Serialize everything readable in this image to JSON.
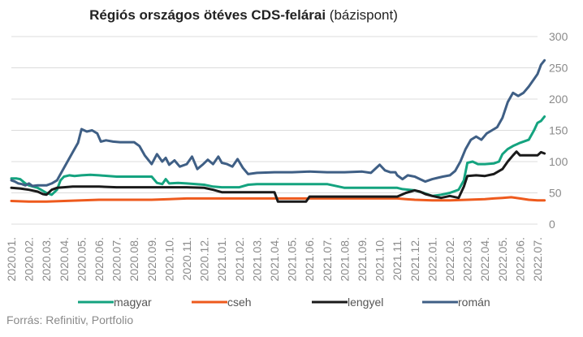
{
  "chart_data": {
    "type": "line",
    "title_bold": "Régiós országos ötéves CDS-felárai",
    "title_rest": " (bázispont)",
    "source": "Forrás: Refinitiv, Portfolio",
    "ylim": [
      0,
      300
    ],
    "yticks": [
      "0",
      "50",
      "100",
      "150",
      "200",
      "250",
      "300"
    ],
    "grid": true,
    "legend_position": "bottom",
    "categories": [
      "2020.01.",
      "2020.02.",
      "2020.03.",
      "2020.04.",
      "2020.05.",
      "2020.06.",
      "2020.07.",
      "2020.08.",
      "2020.09.",
      "2020.10.",
      "2020.11.",
      "2020.12.",
      "2021.01.",
      "2021.02.",
      "2021.03.",
      "2021.04.",
      "2021.05.",
      "2021.06.",
      "2021.07.",
      "2021.08.",
      "2021.09.",
      "2021.10.",
      "2021.11.",
      "2021.12.",
      "2022.01.",
      "2022.02.",
      "2022.03.",
      "2022.04.",
      "2022.05.",
      "2022.06.",
      "2022.07."
    ],
    "series": [
      {
        "name": "magyar",
        "color": "#14a37f",
        "points": [
          [
            0,
            73
          ],
          [
            0.3,
            73
          ],
          [
            0.5,
            72
          ],
          [
            0.8,
            65
          ],
          [
            1.0,
            62
          ],
          [
            1.5,
            58
          ],
          [
            2.0,
            50
          ],
          [
            2.3,
            47
          ],
          [
            2.6,
            55
          ],
          [
            2.8,
            70
          ],
          [
            3.0,
            76
          ],
          [
            3.3,
            78
          ],
          [
            3.6,
            77
          ],
          [
            4.0,
            78
          ],
          [
            4.5,
            79
          ],
          [
            5.0,
            78
          ],
          [
            6.0,
            76
          ],
          [
            7.0,
            76
          ],
          [
            8.0,
            76
          ],
          [
            8.3,
            66
          ],
          [
            8.6,
            64
          ],
          [
            8.8,
            72
          ],
          [
            9.0,
            65
          ],
          [
            9.5,
            66
          ],
          [
            10.0,
            65
          ],
          [
            11.0,
            63
          ],
          [
            11.5,
            60
          ],
          [
            12.0,
            59
          ],
          [
            13.0,
            59
          ],
          [
            13.5,
            63
          ],
          [
            14.0,
            64
          ],
          [
            15.0,
            64
          ],
          [
            16.0,
            64
          ],
          [
            17.0,
            64
          ],
          [
            18.0,
            64
          ],
          [
            19.0,
            58
          ],
          [
            20.0,
            58
          ],
          [
            21.0,
            58
          ],
          [
            22.0,
            58
          ],
          [
            22.3,
            56
          ],
          [
            22.7,
            55
          ],
          [
            23.0,
            54
          ],
          [
            23.5,
            50
          ],
          [
            24.0,
            45
          ],
          [
            24.5,
            47
          ],
          [
            25.0,
            50
          ],
          [
            25.5,
            55
          ],
          [
            25.8,
            70
          ],
          [
            26.0,
            98
          ],
          [
            26.3,
            100
          ],
          [
            26.6,
            96
          ],
          [
            27.0,
            96
          ],
          [
            27.5,
            97
          ],
          [
            27.8,
            100
          ],
          [
            28.0,
            112
          ],
          [
            28.3,
            120
          ],
          [
            28.6,
            125
          ],
          [
            29.0,
            130
          ],
          [
            29.5,
            135
          ],
          [
            29.8,
            150
          ],
          [
            30.0,
            162
          ],
          [
            30.2,
            165
          ],
          [
            30.4,
            172
          ]
        ]
      },
      {
        "name": "cseh",
        "color": "#ee5a1d",
        "points": [
          [
            0,
            37
          ],
          [
            1,
            36
          ],
          [
            2,
            36
          ],
          [
            3,
            37
          ],
          [
            4,
            38
          ],
          [
            5,
            39
          ],
          [
            6,
            39
          ],
          [
            7,
            39
          ],
          [
            8,
            39
          ],
          [
            9,
            40
          ],
          [
            10,
            41
          ],
          [
            11,
            41
          ],
          [
            12,
            41
          ],
          [
            13,
            41
          ],
          [
            14,
            41
          ],
          [
            15,
            41
          ],
          [
            16,
            41
          ],
          [
            17,
            41
          ],
          [
            18,
            41
          ],
          [
            19,
            41
          ],
          [
            20,
            41
          ],
          [
            21,
            41
          ],
          [
            22,
            41
          ],
          [
            22.5,
            40
          ],
          [
            23,
            39
          ],
          [
            24,
            38
          ],
          [
            25,
            38
          ],
          [
            26,
            39
          ],
          [
            27,
            40
          ],
          [
            27.5,
            41
          ],
          [
            28,
            42
          ],
          [
            28.5,
            43
          ],
          [
            29,
            41
          ],
          [
            29.5,
            39
          ],
          [
            30,
            38
          ],
          [
            30.4,
            38
          ]
        ]
      },
      {
        "name": "lengyel",
        "color": "#1a1a1a",
        "points": [
          [
            0,
            58
          ],
          [
            0.5,
            57
          ],
          [
            1.0,
            55
          ],
          [
            1.5,
            52
          ],
          [
            1.8,
            48
          ],
          [
            2.0,
            47
          ],
          [
            2.3,
            55
          ],
          [
            2.6,
            58
          ],
          [
            3.0,
            59
          ],
          [
            3.5,
            60
          ],
          [
            4.0,
            60
          ],
          [
            5.0,
            60
          ],
          [
            6.0,
            59
          ],
          [
            7.0,
            59
          ],
          [
            8.0,
            59
          ],
          [
            9.0,
            59
          ],
          [
            10.0,
            59
          ],
          [
            11.0,
            58
          ],
          [
            11.5,
            55
          ],
          [
            12.0,
            51
          ],
          [
            13.0,
            51
          ],
          [
            14.0,
            51
          ],
          [
            15.0,
            51
          ],
          [
            15.2,
            36
          ],
          [
            16.0,
            36
          ],
          [
            16.8,
            36
          ],
          [
            17.0,
            44
          ],
          [
            18.0,
            44
          ],
          [
            19.0,
            44
          ],
          [
            20.0,
            44
          ],
          [
            21.0,
            44
          ],
          [
            22.0,
            44
          ],
          [
            22.5,
            50
          ],
          [
            23.0,
            54
          ],
          [
            23.3,
            52
          ],
          [
            23.6,
            48
          ],
          [
            24.0,
            45
          ],
          [
            24.5,
            42
          ],
          [
            25.0,
            45
          ],
          [
            25.5,
            42
          ],
          [
            25.8,
            60
          ],
          [
            26.0,
            77
          ],
          [
            26.5,
            78
          ],
          [
            27.0,
            77
          ],
          [
            27.5,
            80
          ],
          [
            28.0,
            88
          ],
          [
            28.3,
            100
          ],
          [
            28.6,
            110
          ],
          [
            28.8,
            116
          ],
          [
            29.0,
            110
          ],
          [
            29.5,
            110
          ],
          [
            30.0,
            110
          ],
          [
            30.2,
            115
          ],
          [
            30.4,
            113
          ]
        ]
      },
      {
        "name": "román",
        "color": "#3f5f85",
        "points": [
          [
            0,
            70
          ],
          [
            0.2,
            68
          ],
          [
            0.4,
            65
          ],
          [
            0.6,
            64
          ],
          [
            0.8,
            62
          ],
          [
            1.0,
            65
          ],
          [
            1.2,
            61
          ],
          [
            1.5,
            62
          ],
          [
            2.0,
            62
          ],
          [
            2.3,
            65
          ],
          [
            2.6,
            70
          ],
          [
            2.9,
            85
          ],
          [
            3.2,
            100
          ],
          [
            3.5,
            115
          ],
          [
            3.8,
            130
          ],
          [
            4.0,
            152
          ],
          [
            4.3,
            148
          ],
          [
            4.6,
            150
          ],
          [
            4.9,
            145
          ],
          [
            5.1,
            132
          ],
          [
            5.4,
            134
          ],
          [
            5.8,
            132
          ],
          [
            6.2,
            131
          ],
          [
            6.6,
            131
          ],
          [
            7.0,
            131
          ],
          [
            7.3,
            125
          ],
          [
            7.6,
            110
          ],
          [
            8.0,
            96
          ],
          [
            8.3,
            112
          ],
          [
            8.6,
            100
          ],
          [
            8.8,
            106
          ],
          [
            9.0,
            95
          ],
          [
            9.3,
            102
          ],
          [
            9.6,
            92
          ],
          [
            10.0,
            96
          ],
          [
            10.3,
            108
          ],
          [
            10.6,
            88
          ],
          [
            10.9,
            95
          ],
          [
            11.2,
            103
          ],
          [
            11.5,
            96
          ],
          [
            11.8,
            108
          ],
          [
            12.0,
            98
          ],
          [
            12.3,
            96
          ],
          [
            12.6,
            92
          ],
          [
            12.9,
            104
          ],
          [
            13.2,
            90
          ],
          [
            13.5,
            80
          ],
          [
            14.0,
            82
          ],
          [
            15.0,
            83
          ],
          [
            16.0,
            83
          ],
          [
            17.0,
            84
          ],
          [
            18.0,
            83
          ],
          [
            19.0,
            83
          ],
          [
            20.0,
            84
          ],
          [
            20.5,
            82
          ],
          [
            21.0,
            95
          ],
          [
            21.3,
            86
          ],
          [
            21.6,
            83
          ],
          [
            21.9,
            83
          ],
          [
            22.0,
            78
          ],
          [
            22.3,
            72
          ],
          [
            22.6,
            78
          ],
          [
            23.0,
            76
          ],
          [
            23.3,
            72
          ],
          [
            23.6,
            68
          ],
          [
            24.0,
            72
          ],
          [
            24.3,
            74
          ],
          [
            24.6,
            76
          ],
          [
            25.0,
            78
          ],
          [
            25.3,
            85
          ],
          [
            25.6,
            100
          ],
          [
            25.9,
            120
          ],
          [
            26.2,
            135
          ],
          [
            26.5,
            140
          ],
          [
            26.8,
            135
          ],
          [
            27.1,
            145
          ],
          [
            27.4,
            150
          ],
          [
            27.7,
            155
          ],
          [
            28.0,
            170
          ],
          [
            28.3,
            195
          ],
          [
            28.6,
            210
          ],
          [
            28.9,
            205
          ],
          [
            29.2,
            210
          ],
          [
            29.5,
            220
          ],
          [
            29.8,
            232
          ],
          [
            30.0,
            240
          ],
          [
            30.2,
            255
          ],
          [
            30.4,
            262
          ]
        ]
      }
    ]
  }
}
